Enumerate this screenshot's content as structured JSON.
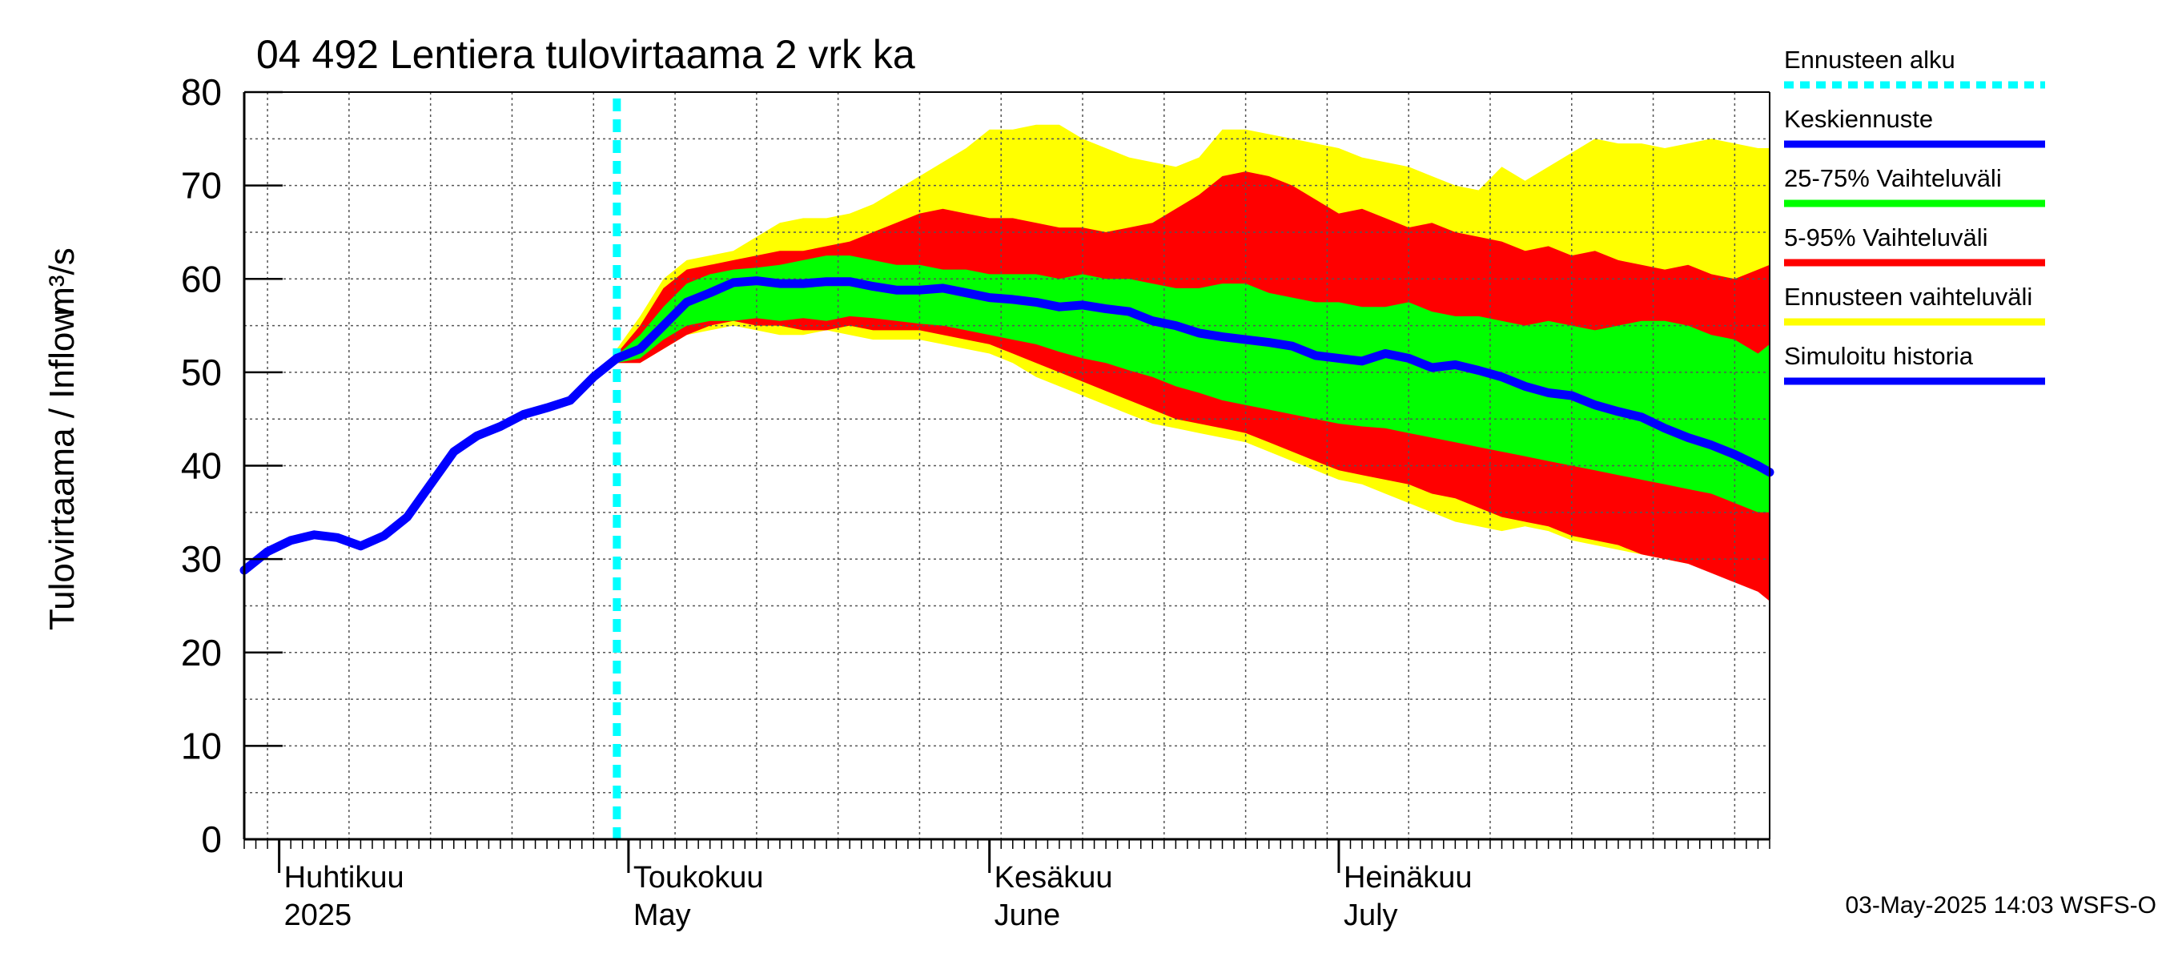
{
  "chart_data": {
    "type": "area",
    "title": "04 492 Lentiera tulovirtaama 2 vrk ka",
    "ylabel": "Tulovirtaama / Inflow",
    "yunit": "m³/s",
    "ylim": [
      0,
      80
    ],
    "y_ticks": [
      "0",
      "10",
      "20",
      "30",
      "40",
      "50",
      "60",
      "70",
      "80"
    ],
    "xlim": [
      "2025-03-29",
      "2025-08-07"
    ],
    "x_month_labels": [
      {
        "date": "2025-04-01",
        "fi": "Huhtikuu",
        "en": "2025"
      },
      {
        "date": "2025-05-01",
        "fi": "Toukokuu",
        "en": "May"
      },
      {
        "date": "2025-06-01",
        "fi": "Kesäkuu",
        "en": "June"
      },
      {
        "date": "2025-07-01",
        "fi": "Heinäkuu",
        "en": "July"
      }
    ],
    "grid": true,
    "legend_position": "right",
    "forecast_start": "2025-04-30",
    "legend": [
      {
        "label": "Ennusteen alku",
        "color": "#00ffff",
        "style": "dotted"
      },
      {
        "label": "Keskiennuste",
        "color": "#0000ff",
        "style": "solid"
      },
      {
        "label": "25-75% Vaihteluväli",
        "color": "#00ff00",
        "style": "solid"
      },
      {
        "label": "5-95% Vaihteluväli",
        "color": "#ff0000",
        "style": "solid"
      },
      {
        "label": "Ennusteen vaihteluväli",
        "color": "#ffff00",
        "style": "solid"
      },
      {
        "label": "Simuloitu historia",
        "color": "#0000ff",
        "style": "solid"
      }
    ],
    "history": {
      "x": [
        "2025-03-29",
        "2025-03-31",
        "2025-04-02",
        "2025-04-04",
        "2025-04-06",
        "2025-04-08",
        "2025-04-10",
        "2025-04-12",
        "2025-04-14",
        "2025-04-16",
        "2025-04-18",
        "2025-04-20",
        "2025-04-22",
        "2025-04-24",
        "2025-04-26",
        "2025-04-28",
        "2025-04-30"
      ],
      "y": [
        28.8,
        30.8,
        32.0,
        32.6,
        32.3,
        31.4,
        32.5,
        34.5,
        38.0,
        41.5,
        43.2,
        44.2,
        45.5,
        46.2,
        47.0,
        49.5,
        51.5
      ]
    },
    "forecast": {
      "x": [
        "2025-04-30",
        "2025-05-02",
        "2025-05-04",
        "2025-05-06",
        "2025-05-08",
        "2025-05-10",
        "2025-05-12",
        "2025-05-14",
        "2025-05-16",
        "2025-05-18",
        "2025-05-20",
        "2025-05-22",
        "2025-05-24",
        "2025-05-26",
        "2025-05-28",
        "2025-05-30",
        "2025-06-01",
        "2025-06-03",
        "2025-06-05",
        "2025-06-07",
        "2025-06-09",
        "2025-06-11",
        "2025-06-13",
        "2025-06-15",
        "2025-06-17",
        "2025-06-19",
        "2025-06-21",
        "2025-06-23",
        "2025-06-25",
        "2025-06-27",
        "2025-06-29",
        "2025-07-01",
        "2025-07-03",
        "2025-07-05",
        "2025-07-07",
        "2025-07-09",
        "2025-07-11",
        "2025-07-13",
        "2025-07-15",
        "2025-07-17",
        "2025-07-19",
        "2025-07-21",
        "2025-07-23",
        "2025-07-25",
        "2025-07-27",
        "2025-07-29",
        "2025-07-31",
        "2025-08-02",
        "2025-08-04",
        "2025-08-06",
        "2025-08-07"
      ],
      "median": [
        51.5,
        52.5,
        55.0,
        57.5,
        58.5,
        59.6,
        59.8,
        59.5,
        59.5,
        59.7,
        59.7,
        59.2,
        58.8,
        58.8,
        59.0,
        58.5,
        58.0,
        57.8,
        57.5,
        57.0,
        57.2,
        56.8,
        56.5,
        55.5,
        55.0,
        54.2,
        53.8,
        53.5,
        53.2,
        52.8,
        51.8,
        51.5,
        51.2,
        52.0,
        51.5,
        50.5,
        50.8,
        50.2,
        49.5,
        48.5,
        47.8,
        47.5,
        46.5,
        45.8,
        45.2,
        44.0,
        43.0,
        42.2,
        41.2,
        40.0,
        39.3
      ],
      "p25": [
        51.0,
        51.5,
        53.5,
        55.0,
        55.5,
        55.5,
        55.8,
        55.5,
        55.8,
        55.5,
        56.0,
        55.8,
        55.5,
        55.2,
        55.0,
        54.5,
        54.0,
        53.5,
        53.0,
        52.2,
        51.5,
        51.0,
        50.2,
        49.5,
        48.5,
        47.8,
        47.0,
        46.5,
        46.0,
        45.5,
        45.0,
        44.5,
        44.2,
        44.0,
        43.5,
        43.0,
        42.5,
        42.0,
        41.5,
        41.0,
        40.5,
        40.0,
        39.5,
        39.0,
        38.5,
        38.0,
        37.5,
        37.0,
        36.0,
        35.0,
        35.0
      ],
      "p75": [
        51.8,
        54.0,
        57.0,
        59.5,
        60.5,
        61.0,
        61.2,
        61.5,
        62.0,
        62.5,
        62.5,
        62.0,
        61.5,
        61.5,
        61.0,
        61.0,
        60.5,
        60.5,
        60.5,
        60.0,
        60.5,
        60.0,
        60.0,
        59.5,
        59.0,
        59.0,
        59.5,
        59.5,
        58.5,
        58.0,
        57.5,
        57.5,
        57.0,
        57.0,
        57.5,
        56.5,
        56.0,
        56.0,
        55.5,
        55.0,
        55.5,
        55.0,
        54.5,
        55.0,
        55.5,
        55.5,
        55.0,
        54.0,
        53.5,
        52.0,
        53.0
      ],
      "p5": [
        51.0,
        51.0,
        52.5,
        54.0,
        55.0,
        55.5,
        55.0,
        55.0,
        54.5,
        54.5,
        55.0,
        54.5,
        54.5,
        54.5,
        54.0,
        53.5,
        53.0,
        52.0,
        51.0,
        50.0,
        49.0,
        48.0,
        47.0,
        46.0,
        45.0,
        44.5,
        44.0,
        43.5,
        42.5,
        41.5,
        40.5,
        39.5,
        39.0,
        38.5,
        38.0,
        37.0,
        36.5,
        35.5,
        34.5,
        34.0,
        33.5,
        32.5,
        32.0,
        31.5,
        30.5,
        30.0,
        29.5,
        28.5,
        27.5,
        26.5,
        25.5
      ],
      "p95": [
        52.0,
        55.0,
        59.0,
        61.0,
        61.5,
        62.0,
        62.5,
        63.0,
        63.0,
        63.5,
        64.0,
        65.0,
        66.0,
        67.0,
        67.5,
        67.0,
        66.5,
        66.5,
        66.0,
        65.5,
        65.5,
        65.0,
        65.5,
        66.0,
        67.5,
        69.0,
        71.0,
        71.5,
        71.0,
        70.0,
        68.5,
        67.0,
        67.5,
        66.5,
        65.5,
        66.0,
        65.0,
        64.5,
        64.0,
        63.0,
        63.5,
        62.5,
        63.0,
        62.0,
        61.5,
        61.0,
        61.5,
        60.5,
        60.0,
        61.0,
        61.5
      ],
      "min": [
        51.0,
        51.0,
        52.5,
        54.0,
        54.5,
        55.0,
        54.5,
        54.0,
        54.0,
        54.5,
        54.0,
        53.5,
        53.5,
        53.5,
        53.0,
        52.5,
        52.0,
        51.0,
        49.5,
        48.5,
        47.5,
        46.5,
        45.5,
        44.5,
        44.0,
        43.5,
        43.0,
        42.5,
        41.5,
        40.5,
        39.5,
        38.5,
        38.0,
        37.0,
        36.0,
        35.0,
        34.0,
        33.5,
        33.0,
        33.5,
        33.0,
        32.0,
        31.5,
        31.0,
        30.5,
        30.0,
        29.5,
        29.0,
        28.0,
        27.0,
        26.0
      ],
      "max": [
        52.5,
        56.0,
        60.0,
        62.0,
        62.5,
        63.0,
        64.5,
        66.0,
        66.5,
        66.5,
        67.0,
        68.0,
        69.5,
        71.0,
        72.5,
        74.0,
        76.0,
        76.0,
        76.5,
        76.5,
        75.0,
        74.0,
        73.0,
        72.5,
        72.0,
        73.0,
        76.0,
        76.0,
        75.5,
        75.0,
        74.5,
        74.0,
        73.0,
        72.5,
        72.0,
        71.0,
        70.0,
        69.5,
        72.0,
        70.5,
        72.0,
        73.5,
        75.0,
        74.5,
        74.5,
        74.0,
        74.5,
        75.0,
        74.5,
        74.0,
        74.0
      ]
    },
    "footer": "03-May-2025 14:03 WSFS-O"
  },
  "colors": {
    "yellow": "#ffff00",
    "red": "#ff0000",
    "green": "#00ff00",
    "blue": "#0000ff",
    "cyan": "#00ffff"
  }
}
